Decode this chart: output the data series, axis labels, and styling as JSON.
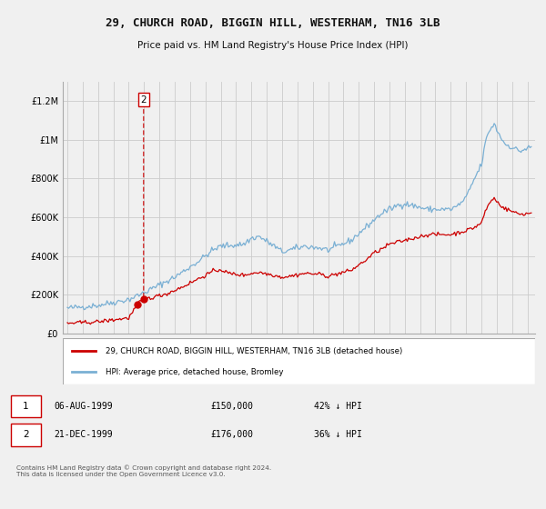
{
  "title": "29, CHURCH ROAD, BIGGIN HILL, WESTERHAM, TN16 3LB",
  "subtitle": "Price paid vs. HM Land Registry's House Price Index (HPI)",
  "legend_property": "29, CHURCH ROAD, BIGGIN HILL, WESTERHAM, TN16 3LB (detached house)",
  "legend_hpi": "HPI: Average price, detached house, Bromley",
  "transactions": [
    {
      "num": 1,
      "date": "06-AUG-1999",
      "price": 150000,
      "pct": "42% ↓ HPI",
      "year": 1999.58
    },
    {
      "num": 2,
      "date": "21-DEC-1999",
      "price": 176000,
      "pct": "36% ↓ HPI",
      "year": 1999.97
    }
  ],
  "copyright": "Contains HM Land Registry data © Crown copyright and database right 2024.\nThis data is licensed under the Open Government Licence v3.0.",
  "property_color": "#cc0000",
  "hpi_color": "#7ab0d4",
  "annotation_box_color": "#cc0000",
  "ylim": [
    0,
    1300000
  ],
  "xlim_start": 1994.7,
  "xlim_end": 2025.5,
  "background_color": "#f0f0f0",
  "grid_color": "#cccccc",
  "yticks": [
    0,
    200000,
    400000,
    600000,
    800000,
    1000000,
    1200000
  ],
  "xticks": [
    1995,
    1996,
    1997,
    1998,
    1999,
    2000,
    2001,
    2002,
    2003,
    2004,
    2005,
    2006,
    2007,
    2008,
    2009,
    2010,
    2011,
    2012,
    2013,
    2014,
    2015,
    2016,
    2017,
    2018,
    2019,
    2020,
    2021,
    2022,
    2023,
    2024,
    2025
  ]
}
